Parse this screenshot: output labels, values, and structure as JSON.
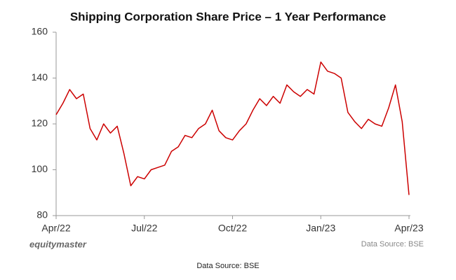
{
  "chart_data": {
    "type": "line",
    "title": "Shipping Corporation Share Price – 1 Year Performance",
    "categories": [
      "Apr/22",
      null,
      null,
      null,
      null,
      null,
      null,
      null,
      null,
      null,
      null,
      null,
      null,
      "Jul/22",
      null,
      null,
      null,
      null,
      null,
      null,
      null,
      null,
      null,
      null,
      null,
      null,
      "Oct/22",
      null,
      null,
      null,
      null,
      null,
      null,
      null,
      null,
      null,
      null,
      null,
      null,
      "Jan/23",
      null,
      null,
      null,
      null,
      null,
      null,
      null,
      null,
      null,
      null,
      null,
      null,
      "Apr/23"
    ],
    "series": [
      {
        "name": "Share Price",
        "color": "#cc0000",
        "values": [
          124,
          129,
          135,
          131,
          133,
          118,
          113,
          120,
          116,
          119,
          107,
          93,
          97,
          96,
          100,
          101,
          102,
          108,
          110,
          115,
          114,
          118,
          120,
          126,
          117,
          114,
          113,
          117,
          120,
          126,
          131,
          128,
          132,
          129,
          137,
          134,
          132,
          135,
          133,
          147,
          143,
          142,
          140,
          125,
          121,
          118,
          122,
          120,
          119,
          127,
          137,
          121,
          89
        ]
      }
    ],
    "ylim": [
      80,
      160
    ],
    "yticks": [
      80,
      100,
      120,
      140,
      160
    ],
    "grid": false,
    "annotations": [
      "equitymaster",
      "Data Source: BSE"
    ],
    "caption": "Data Source: BSE"
  }
}
